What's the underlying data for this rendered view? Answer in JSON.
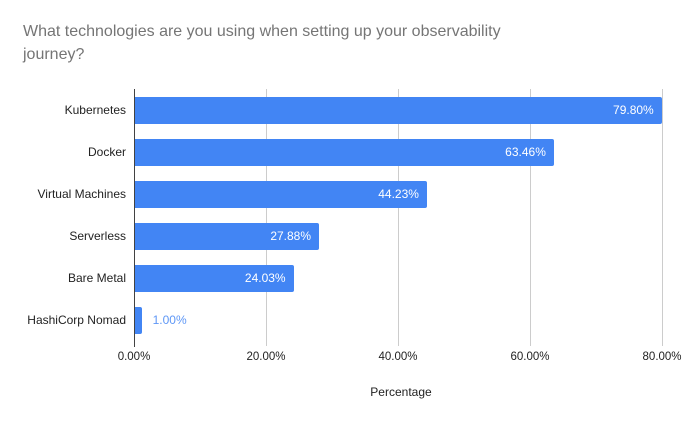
{
  "title": "What technologies are you using when setting up your observability journey?",
  "chart_data": {
    "type": "bar",
    "orientation": "horizontal",
    "title": "What technologies are you using when setting up your observability journey?",
    "categories": [
      "Kubernetes",
      "Docker",
      "Virtual Machines",
      "Serverless",
      "Bare Metal",
      "HashiCorp Nomad"
    ],
    "values": [
      79.8,
      63.46,
      44.23,
      27.88,
      24.03,
      1.0
    ],
    "value_labels": [
      "79.80%",
      "63.46%",
      "44.23%",
      "27.88%",
      "24.03%",
      "1.00%"
    ],
    "xlabel": "Percentage",
    "ylabel": "",
    "xlim": [
      0,
      80.9
    ],
    "x_ticks": [
      0,
      20,
      40,
      60,
      80
    ],
    "x_tick_labels": [
      "0.00%",
      "20.00%",
      "40.00%",
      "60.00%",
      "80.00%"
    ],
    "grid": true,
    "legend": "none",
    "colors": {
      "bar": "#4285f4",
      "value_label_inside": "#ffffff",
      "value_label_outside": "#5e97f6",
      "title": "#757575",
      "axis_line": "#424242",
      "gridline": "#cccccc",
      "tick_text": "#222222"
    }
  }
}
